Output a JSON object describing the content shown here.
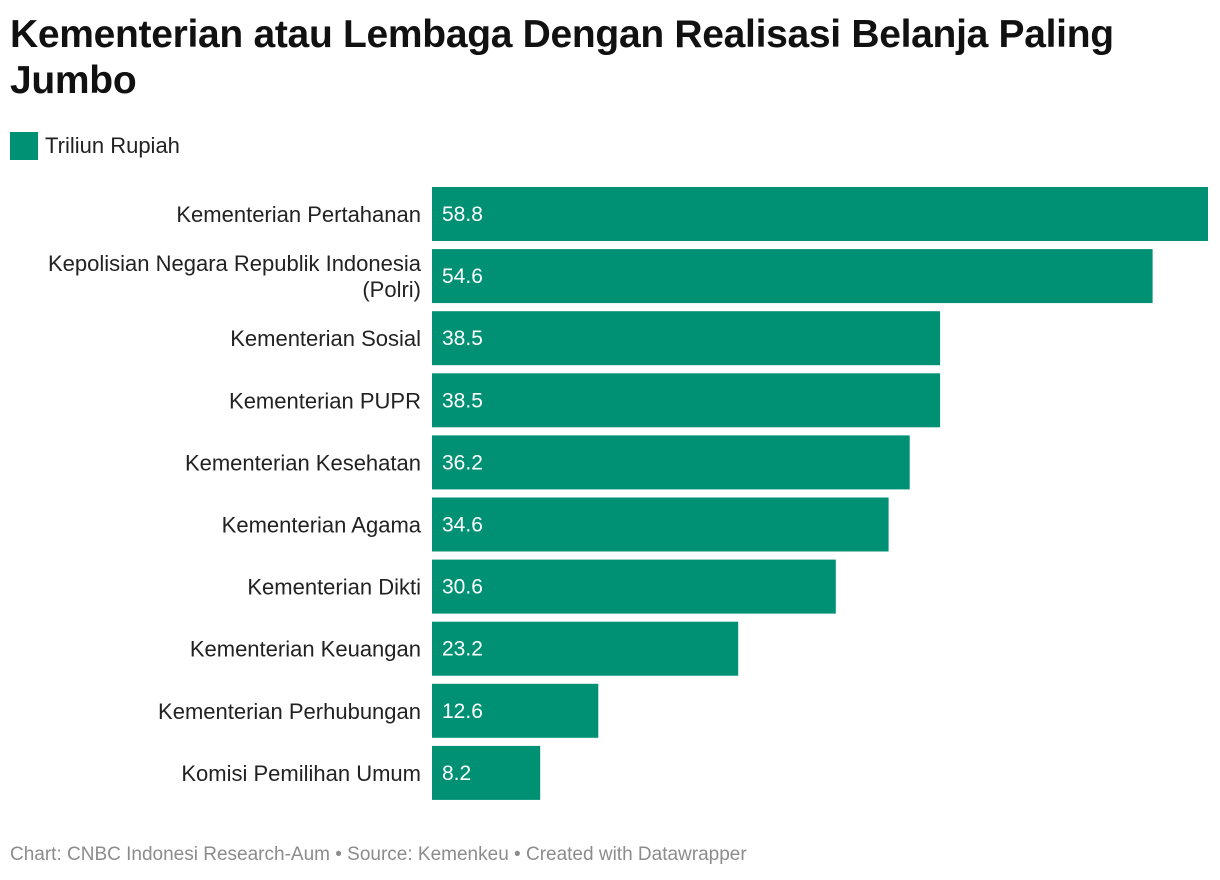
{
  "chart_data": {
    "type": "bar",
    "orientation": "horizontal",
    "title": "Kementerian atau Lembaga Dengan Realisasi Belanja Paling Jumbo",
    "legend": [
      "Triliun Rupiah"
    ],
    "legend_position": "top-left",
    "categories": [
      [
        "Kementerian Pertahanan"
      ],
      [
        "Kepolisian Negara Republik Indonesia",
        "(Polri)"
      ],
      [
        "Kementerian Sosial"
      ],
      [
        "Kementerian PUPR"
      ],
      [
        "Kementerian Kesehatan"
      ],
      [
        "Kementerian Agama"
      ],
      [
        "Kementerian Dikti"
      ],
      [
        "Kementerian Keuangan"
      ],
      [
        "Kementerian Perhubungan"
      ],
      [
        "Komisi Pemilihan Umum"
      ]
    ],
    "values": [
      58.8,
      54.6,
      38.5,
      38.5,
      36.2,
      34.6,
      30.6,
      23.2,
      12.6,
      8.2
    ],
    "value_labels": [
      "58.8",
      "54.6",
      "38.5",
      "38.5",
      "36.2",
      "34.6",
      "30.6",
      "23.2",
      "12.6",
      "8.2"
    ],
    "xlim": [
      0,
      58.8
    ],
    "grid": false,
    "bar_color": "#009174"
  },
  "footer": {
    "text": "Chart: CNBC Indonesi Research-Aum • Source: Kemenkeu • Created with Datawrapper"
  }
}
